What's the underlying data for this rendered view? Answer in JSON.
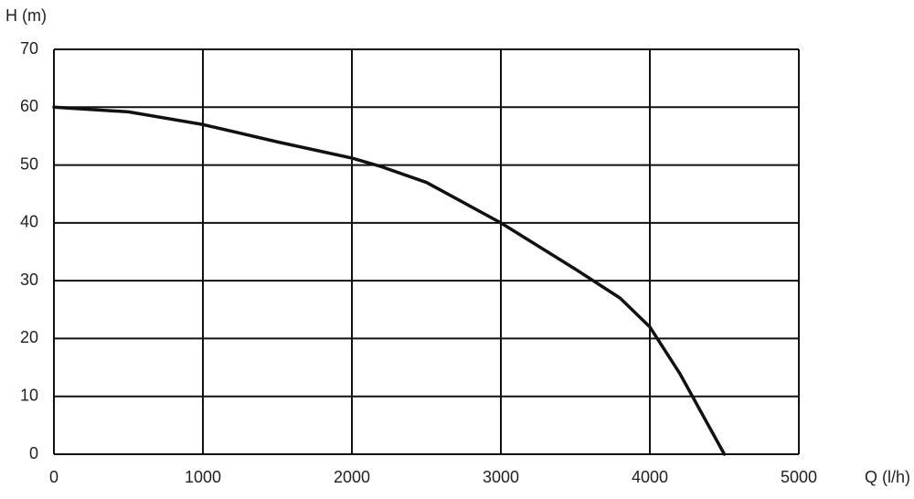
{
  "chart_data": {
    "type": "line",
    "xlabel": "Q (l/h)",
    "ylabel": "H (m)",
    "x": [
      0,
      500,
      1000,
      1500,
      2000,
      2200,
      2500,
      3000,
      3500,
      3800,
      4000,
      4200,
      4500
    ],
    "series": [
      {
        "color": "#111111",
        "values": [
          60,
          59.2,
          57,
          54,
          51.2,
          49.7,
          47,
          40,
          32,
          27,
          22,
          14,
          0
        ]
      }
    ],
    "xlim": [
      0,
      5000
    ],
    "xticks": [
      0,
      1000,
      2000,
      3000,
      4000,
      5000
    ],
    "ylim": [
      0,
      70
    ],
    "yticks": [
      0,
      10,
      20,
      30,
      40,
      50,
      60,
      70
    ],
    "grid": true
  }
}
